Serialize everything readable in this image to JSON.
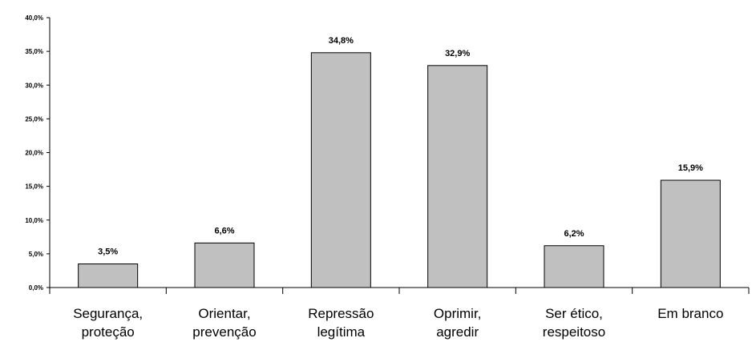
{
  "chart_data": {
    "type": "bar",
    "title": "",
    "xlabel": "",
    "ylabel": "",
    "ylim": [
      0,
      40
    ],
    "yticks": [
      0,
      5,
      10,
      15,
      20,
      25,
      30,
      35,
      40
    ],
    "ytick_labels": [
      "0,0%",
      "5,0%",
      "10,0%",
      "15,0%",
      "20,0%",
      "25,0%",
      "30,0%",
      "35,0%",
      "40,0%"
    ],
    "categories": [
      [
        "Segurança,",
        "proteção"
      ],
      [
        "Orientar,",
        "prevenção"
      ],
      [
        "Repressão",
        "legítima"
      ],
      [
        "Oprimir,",
        "agredir"
      ],
      [
        "Ser ético,",
        "respeitoso"
      ],
      [
        "Em branco"
      ]
    ],
    "values": [
      3.5,
      6.6,
      34.8,
      32.9,
      6.2,
      15.9
    ],
    "value_labels": [
      "3,5%",
      "6,6%",
      "34,8%",
      "32,9%",
      "6,2%",
      "15,9%"
    ],
    "grid": false,
    "legend": "none",
    "colors": {
      "bar_fill": "#c0c0c0",
      "bar_stroke": "#000000",
      "axis": "#000000"
    }
  }
}
